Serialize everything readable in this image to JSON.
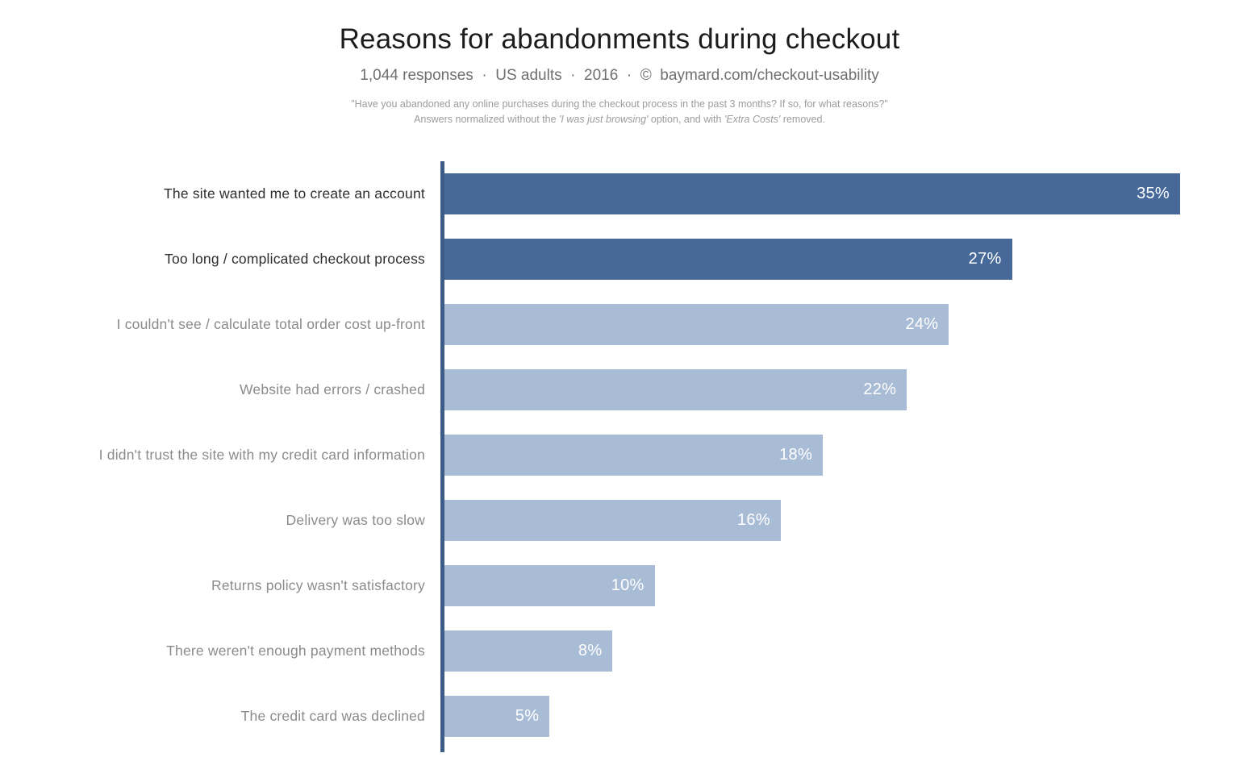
{
  "header": {
    "title": "Reasons for abandonments during checkout",
    "subtitle": "1,044 responses  ·  US adults  ·  2016  ·  ©  baymard.com/checkout-usability",
    "note_line1": "\"Have you abandoned any online purchases during the checkout process in the past 3 months? If so, for what reasons?\"",
    "note_line2_prefix": "Answers normalized without the ",
    "note_line2_italic1": "'I was just browsing'",
    "note_line2_mid": " option, and with ",
    "note_line2_italic2": "'Extra Costs'",
    "note_line2_suffix": " removed."
  },
  "chart_data": {
    "type": "bar",
    "orientation": "horizontal",
    "title": "Reasons for abandonments during checkout",
    "subtitle": "1,044 responses · US adults · 2016 · © baymard.com/checkout-usability",
    "categories": [
      "The site wanted me to create an account",
      "Too long / complicated checkout process",
      "I couldn't see / calculate total order cost up-front",
      "Website had errors / crashed",
      "I didn't trust the site with my credit card information",
      "Delivery was too slow",
      "Returns policy wasn't satisfactory",
      "There weren't enough payment methods",
      "The credit card was declined"
    ],
    "values": [
      35,
      27,
      24,
      22,
      18,
      16,
      10,
      8,
      5
    ],
    "value_labels": [
      "35%",
      "27%",
      "24%",
      "22%",
      "18%",
      "16%",
      "10%",
      "8%",
      "5%"
    ],
    "highlighted": [
      true,
      true,
      false,
      false,
      false,
      false,
      false,
      false,
      false
    ],
    "xlim": [
      0,
      37.8
    ],
    "grid": false,
    "legend": "none",
    "value_label_position": "inside-end",
    "colors": {
      "bar_primary": "#46699a",
      "bar_secondary": "#a9bcd6",
      "axis_line": "#3d5c87",
      "category_label_primary": "#2e2e2e",
      "category_label_secondary": "#8b8b8b",
      "value_text": "#ffffff",
      "title_text": "#1c1c1c",
      "subtitle_text": "#6f6f6f",
      "note_text": "#9c9c9c"
    }
  }
}
